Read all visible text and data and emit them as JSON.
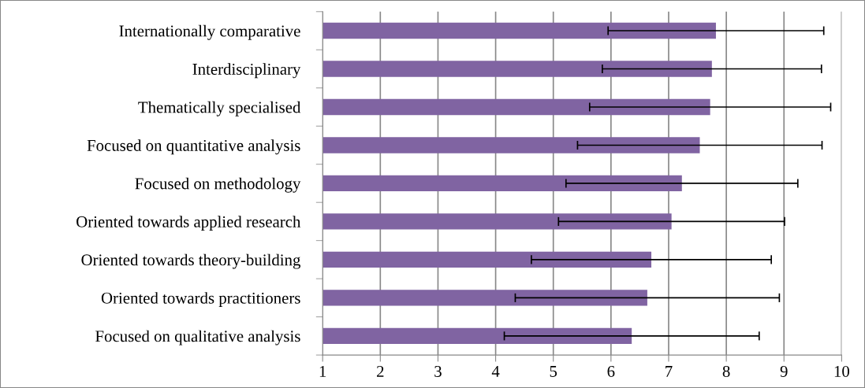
{
  "chart_data": {
    "type": "bar",
    "orientation": "horizontal",
    "categories": [
      "Internationally comparative",
      "Interdisciplinary",
      "Thematically specialised",
      "Focused on quantitative analysis",
      "Focused on methodology",
      "Oriented towards applied research",
      "Oriented towards theory-building",
      "Oriented towards practitioners",
      "Focused on qualitative analysis"
    ],
    "values": [
      7.82,
      7.75,
      7.72,
      7.54,
      7.23,
      7.05,
      6.7,
      6.63,
      6.36
    ],
    "errors": [
      1.87,
      1.9,
      2.09,
      2.12,
      2.01,
      1.96,
      2.08,
      2.29,
      2.21
    ],
    "color": "#8064a2",
    "xlim": [
      1,
      10
    ],
    "xticks": [
      1,
      2,
      3,
      4,
      5,
      6,
      7,
      8,
      9,
      10
    ],
    "grid": "x",
    "legend": false
  }
}
